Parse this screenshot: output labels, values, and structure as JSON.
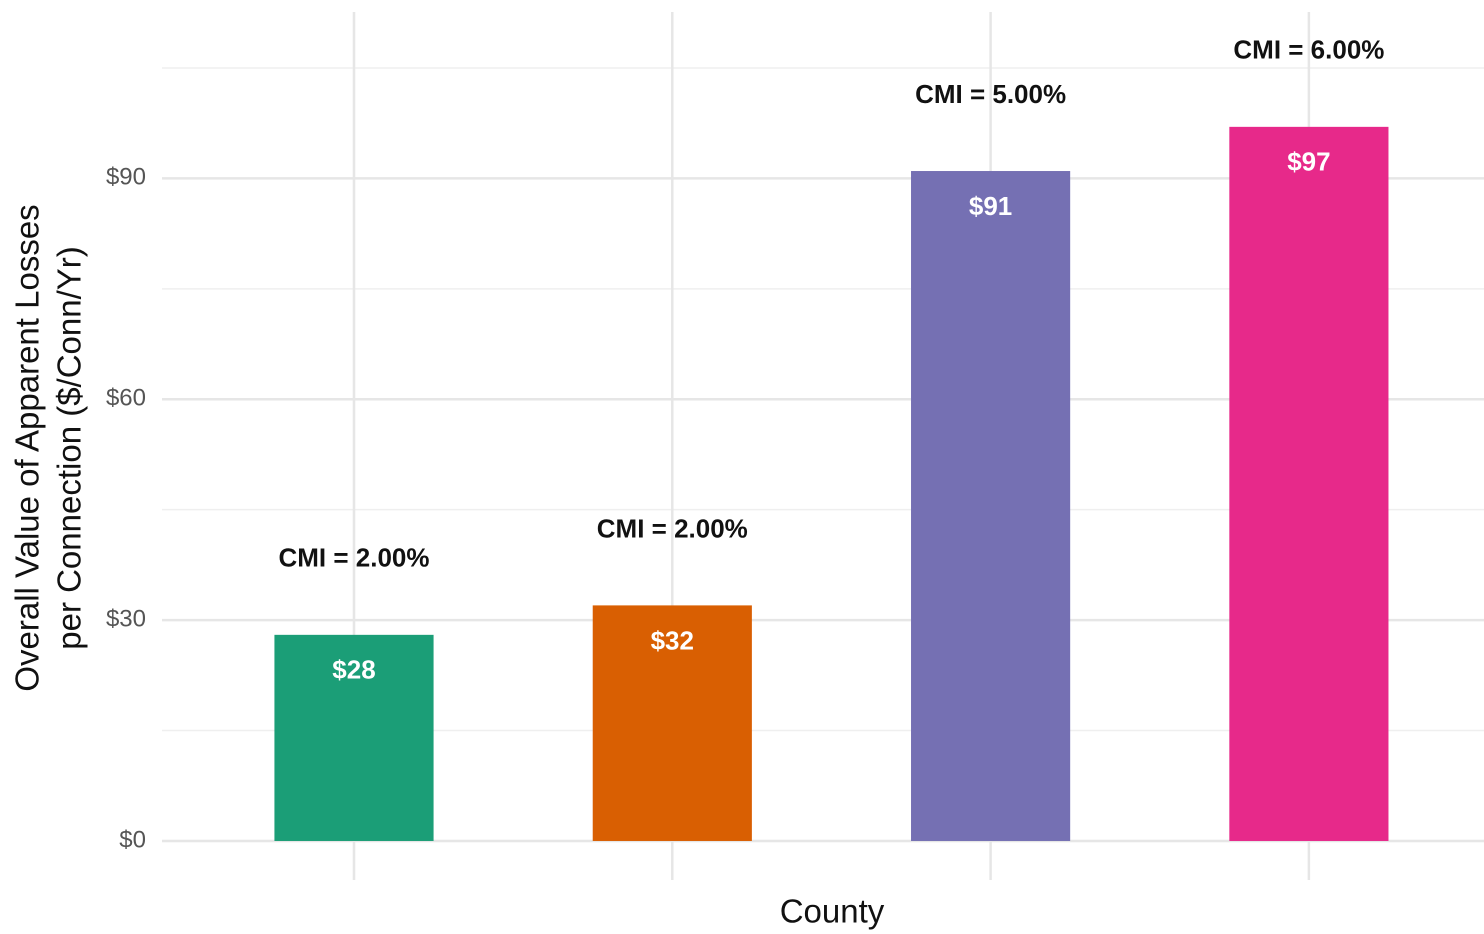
{
  "chart_data": {
    "type": "bar",
    "xlabel": "County",
    "ylabel": [
      "Overall Value of Apparent Losses",
      "per Connection ($/Conn/Yr)"
    ],
    "categories": [
      null,
      null,
      null,
      null
    ],
    "values": [
      28,
      32,
      91,
      97
    ],
    "value_labels": [
      "$28",
      "$32",
      "$91",
      "$97"
    ],
    "annotations": [
      "CMI = 2.00%",
      "CMI = 2.00%",
      "CMI = 5.00%",
      "CMI = 6.00%"
    ],
    "colors": [
      "#1b9e77",
      "#d95f02",
      "#7570b3",
      "#e7298a"
    ],
    "ylim": [
      -5.3,
      112.6
    ],
    "yticks": [
      {
        "value": 0,
        "label": "$0"
      },
      {
        "value": 30,
        "label": "$30"
      },
      {
        "value": 60,
        "label": "$60"
      },
      {
        "value": 90,
        "label": "$90"
      }
    ],
    "yminor": [
      15,
      45,
      75,
      105
    ],
    "grid": true
  }
}
